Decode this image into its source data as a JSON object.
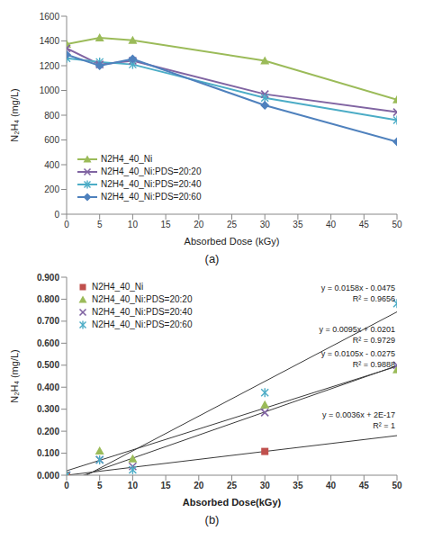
{
  "chart_data": [
    {
      "type": "line",
      "title": "(a)",
      "x_label": "Absorbed Dose (kGy)",
      "y_label": "N₂H₄ (mg/L)",
      "x": [
        0,
        5,
        10,
        30,
        50
      ],
      "series": [
        {
          "name": "N2H4_40_Ni",
          "color": "#9bbb59",
          "marker": "triangle",
          "values": [
            1375,
            1425,
            1405,
            1240,
            925
          ]
        },
        {
          "name": "N2H4_40_Ni:PDS=20:20",
          "color": "#8064a2",
          "marker": "x",
          "values": [
            1340,
            1210,
            1240,
            970,
            825
          ]
        },
        {
          "name": "N2H4_40_Ni:PDS=20:40",
          "color": "#4bacc6",
          "marker": "star",
          "values": [
            1260,
            1230,
            1210,
            940,
            760
          ]
        },
        {
          "name": "N2H4_40_Ni:PDS=20:60",
          "color": "#4f81bd",
          "marker": "diamond",
          "values": [
            1290,
            1200,
            1255,
            880,
            585
          ]
        }
      ],
      "xlim": [
        0,
        50
      ],
      "xticks": [
        0,
        5,
        10,
        15,
        20,
        25,
        30,
        35,
        40,
        45,
        50
      ],
      "ylim": [
        0,
        1600
      ],
      "yticks": [
        0,
        200,
        400,
        600,
        800,
        1000,
        1200,
        1400,
        1600
      ],
      "grid": false,
      "legend": "lower left"
    },
    {
      "type": "scatter",
      "title": "(b)",
      "x_label": "Absorbed Dose(kGy)",
      "y_label": "N₂H₄ (mg/L)",
      "series": [
        {
          "name": "N2H4_40_Ni",
          "color": "#c0504d",
          "marker": "square",
          "x": [
            0,
            30
          ],
          "values": [
            0,
            0.108
          ],
          "trendline": {
            "slope": 0.0036,
            "intercept": 2e-17,
            "equation": "y = 0.0036x + 2E-17",
            "r2_label": "R² = 1"
          }
        },
        {
          "name": "N2H4_40_Ni:PDS=20:20",
          "color": "#9bbb59",
          "marker": "triangle",
          "x": [
            0,
            5,
            10,
            30,
            50
          ],
          "values": [
            0,
            0.11,
            0.075,
            0.32,
            0.48
          ],
          "trendline": {
            "slope": 0.0095,
            "intercept": 0.0201,
            "equation": "y = 0.0095x + 0.0201",
            "r2_label": "R² = 0.9729"
          }
        },
        {
          "name": "N2H4_40_Ni:PDS=20:40",
          "color": "#8064a2",
          "marker": "x",
          "x": [
            0,
            5,
            10,
            30,
            50
          ],
          "values": [
            0,
            0.07,
            0.04,
            0.285,
            0.5
          ],
          "trendline": {
            "slope": 0.0105,
            "intercept": -0.0275,
            "equation": "y = 0.0105x - 0.0275",
            "r2_label": "R² = 0.9888"
          }
        },
        {
          "name": "N2H4_40_Ni:PDS=20:60",
          "color": "#4bacc6",
          "marker": "star",
          "x": [
            0,
            5,
            10,
            30,
            50
          ],
          "values": [
            0,
            0.07,
            0.025,
            0.375,
            0.78
          ],
          "trendline": {
            "slope": 0.0158,
            "intercept": -0.0475,
            "equation": "y = 0.0158x - 0.0475",
            "r2_label": "R² = 0.9656"
          }
        }
      ],
      "xlim": [
        0,
        50
      ],
      "xticks": [
        0,
        5,
        10,
        15,
        20,
        25,
        30,
        35,
        40,
        45,
        50
      ],
      "ylim": [
        0,
        0.9
      ],
      "yticks": [
        {
          "value": 0,
          "label": "0.000"
        },
        {
          "value": 0.1,
          "label": "0.100"
        },
        {
          "value": 0.2,
          "label": "0.200"
        },
        {
          "value": 0.3,
          "label": "0.300"
        },
        {
          "value": 0.4,
          "label": "0.400"
        },
        {
          "value": 0.5,
          "label": "0.500"
        },
        {
          "value": 0.6,
          "label": "0.600"
        },
        {
          "value": 0.7,
          "label": "0.700"
        },
        {
          "value": 0.8,
          "label": "0.800"
        },
        {
          "value": 0.9,
          "label": "0.900"
        }
      ],
      "grid": false,
      "legend": "upper left"
    }
  ]
}
